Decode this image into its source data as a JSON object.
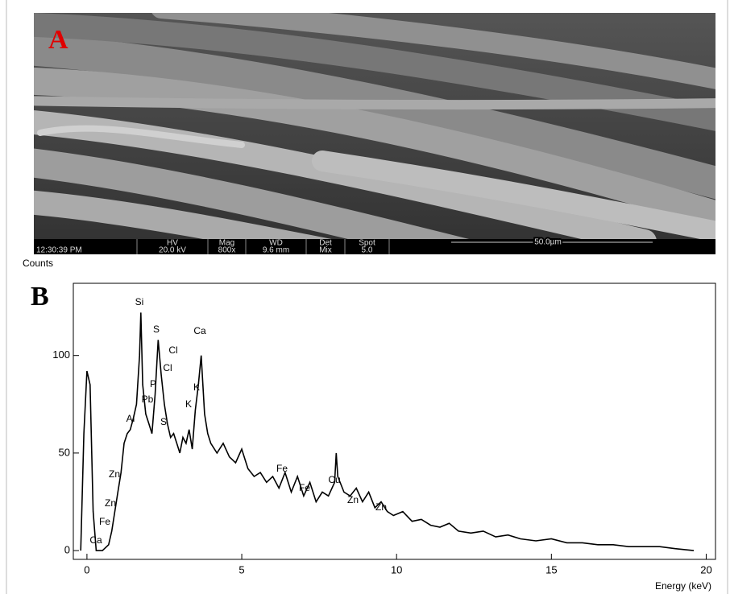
{
  "panel_a": {
    "label": "A",
    "info_bar": {
      "time": "12:30:39 PM",
      "headers": [
        "HV",
        "Mag",
        "WD",
        "Det",
        "Spot"
      ],
      "values": [
        "20.0 kV",
        "800x",
        "9.6 mm",
        "Mix",
        "5.0"
      ],
      "scale_bar": "50.0µm"
    }
  },
  "chart_data": {
    "type": "line",
    "panel_label": "B",
    "y_label": "Counts",
    "x_label": "Energy (keV)",
    "color": "#000000",
    "xlim": [
      -0.44,
      20.3
    ],
    "ylim": [
      -4.5,
      137
    ],
    "xticks": [
      0,
      5,
      10,
      15,
      20
    ],
    "yticks": [
      0,
      50,
      100
    ],
    "x": [
      -0.2,
      -0.1,
      0.0,
      0.1,
      0.2,
      0.3,
      0.5,
      0.7,
      0.8,
      0.9,
      1.0,
      1.1,
      1.2,
      1.3,
      1.4,
      1.5,
      1.6,
      1.7,
      1.74,
      1.8,
      1.9,
      2.0,
      2.1,
      2.2,
      2.3,
      2.4,
      2.5,
      2.6,
      2.7,
      2.8,
      2.9,
      3.0,
      3.1,
      3.2,
      3.3,
      3.4,
      3.5,
      3.6,
      3.69,
      3.8,
      3.9,
      4.0,
      4.2,
      4.4,
      4.6,
      4.8,
      5.0,
      5.2,
      5.4,
      5.6,
      5.8,
      6.0,
      6.2,
      6.4,
      6.6,
      6.8,
      7.0,
      7.2,
      7.4,
      7.6,
      7.8,
      8.0,
      8.05,
      8.1,
      8.3,
      8.5,
      8.7,
      8.9,
      9.1,
      9.3,
      9.5,
      9.7,
      9.9,
      10.2,
      10.5,
      10.8,
      11.1,
      11.4,
      11.7,
      12.0,
      12.4,
      12.8,
      13.2,
      13.6,
      14.0,
      14.5,
      15.0,
      15.5,
      16.0,
      16.5,
      17.0,
      17.5,
      18.0,
      18.5,
      19.0,
      19.6
    ],
    "values": [
      0,
      60,
      92,
      85,
      20,
      0,
      0,
      3,
      10,
      20,
      30,
      40,
      55,
      60,
      62,
      68,
      75,
      100,
      122,
      85,
      70,
      65,
      60,
      80,
      108,
      90,
      75,
      65,
      58,
      60,
      55,
      50,
      58,
      55,
      62,
      52,
      72,
      85,
      100,
      70,
      60,
      55,
      50,
      55,
      48,
      45,
      52,
      42,
      38,
      40,
      35,
      38,
      32,
      40,
      30,
      38,
      28,
      35,
      25,
      30,
      28,
      35,
      50,
      38,
      30,
      28,
      32,
      25,
      30,
      22,
      25,
      20,
      18,
      20,
      15,
      16,
      13,
      12,
      14,
      10,
      9,
      10,
      7,
      8,
      6,
      5,
      6,
      4,
      4,
      3,
      3,
      2,
      2,
      2,
      1,
      0
    ],
    "annotations": [
      "Si",
      "S",
      "Ca",
      "Cl",
      "Cl",
      "P",
      "Pb",
      "K",
      "K",
      "Al",
      "S",
      "Zn",
      "Zn",
      "Fe",
      "Ca",
      "Fe",
      "Fe",
      "Cu",
      "Zn",
      "Zn"
    ]
  }
}
